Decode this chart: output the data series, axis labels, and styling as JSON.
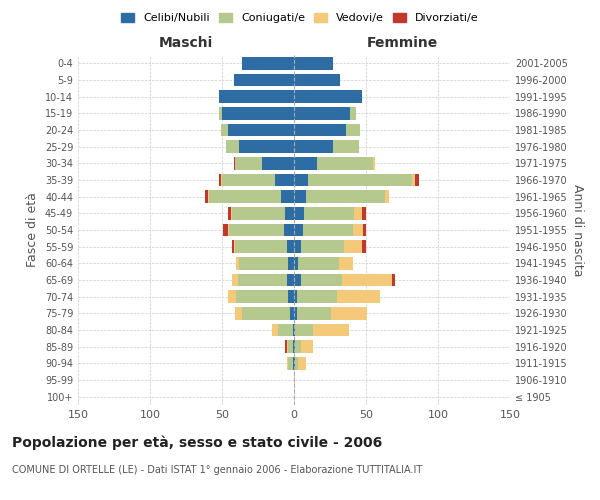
{
  "age_groups": [
    "100+",
    "95-99",
    "90-94",
    "85-89",
    "80-84",
    "75-79",
    "70-74",
    "65-69",
    "60-64",
    "55-59",
    "50-54",
    "45-49",
    "40-44",
    "35-39",
    "30-34",
    "25-29",
    "20-24",
    "15-19",
    "10-14",
    "5-9",
    "0-4"
  ],
  "birth_years": [
    "≤ 1905",
    "1906-1910",
    "1911-1915",
    "1916-1920",
    "1921-1925",
    "1926-1930",
    "1931-1935",
    "1936-1940",
    "1941-1945",
    "1946-1950",
    "1951-1955",
    "1956-1960",
    "1961-1965",
    "1966-1970",
    "1971-1975",
    "1976-1980",
    "1981-1985",
    "1986-1990",
    "1991-1995",
    "1996-2000",
    "2001-2005"
  ],
  "maschi_celibi": [
    0,
    0,
    1,
    1,
    1,
    3,
    4,
    5,
    4,
    5,
    7,
    6,
    9,
    13,
    22,
    38,
    46,
    50,
    52,
    42,
    36
  ],
  "maschi_coniugati": [
    0,
    0,
    3,
    3,
    10,
    33,
    36,
    34,
    34,
    36,
    38,
    37,
    50,
    37,
    19,
    9,
    5,
    2,
    0,
    0,
    0
  ],
  "maschi_vedovi": [
    0,
    0,
    1,
    1,
    4,
    5,
    6,
    4,
    2,
    1,
    1,
    1,
    1,
    1,
    0,
    0,
    0,
    0,
    0,
    0,
    0
  ],
  "maschi_divorziati": [
    0,
    0,
    0,
    1,
    0,
    0,
    0,
    0,
    0,
    1,
    3,
    2,
    2,
    1,
    1,
    0,
    0,
    0,
    0,
    0,
    0
  ],
  "femmine_celibi": [
    0,
    0,
    1,
    1,
    1,
    2,
    2,
    5,
    3,
    5,
    6,
    7,
    8,
    10,
    16,
    27,
    36,
    39,
    47,
    32,
    27
  ],
  "femmine_coniugati": [
    0,
    0,
    2,
    4,
    12,
    24,
    28,
    28,
    28,
    30,
    35,
    35,
    55,
    72,
    39,
    18,
    10,
    4,
    0,
    0,
    0
  ],
  "femmine_vedovi": [
    0,
    1,
    5,
    8,
    25,
    25,
    30,
    35,
    10,
    12,
    7,
    5,
    3,
    2,
    1,
    0,
    0,
    0,
    0,
    0,
    0
  ],
  "femmine_divorziati": [
    0,
    0,
    0,
    0,
    0,
    0,
    0,
    2,
    0,
    3,
    2,
    3,
    0,
    3,
    0,
    0,
    0,
    0,
    0,
    0,
    0
  ],
  "colors": {
    "celibi": "#2e6da4",
    "coniugati": "#b5c98e",
    "vedovi": "#f5c97a",
    "divorziati": "#c0392b"
  },
  "title": "Popolazione per età, sesso e stato civile - 2006",
  "subtitle": "COMUNE DI ORTELLE (LE) - Dati ISTAT 1° gennaio 2006 - Elaborazione TUTTITALIA.IT",
  "xlabel_left": "Maschi",
  "xlabel_right": "Femmine",
  "ylabel": "Fasce di età",
  "ylabel_right": "Anni di nascita",
  "xlim": 150,
  "background_color": "#ffffff",
  "grid_color": "#cccccc"
}
